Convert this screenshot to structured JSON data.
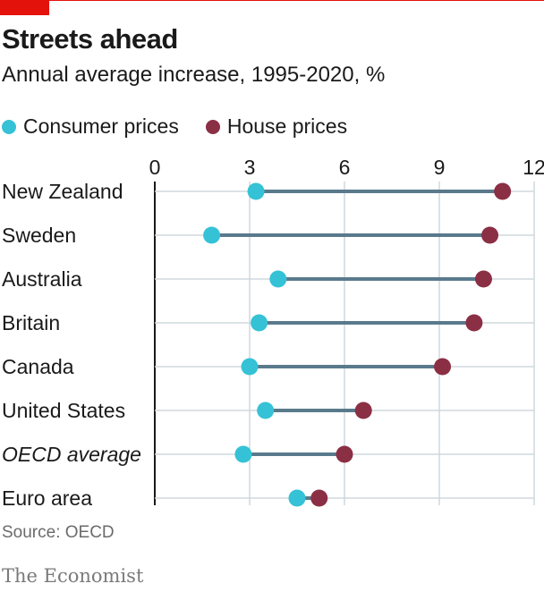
{
  "header": {
    "title": "Streets ahead",
    "subtitle": "Annual average increase, 1995-2020, %"
  },
  "legend": {
    "consumer": "Consumer prices",
    "house": "House prices"
  },
  "colors": {
    "consumer": "#35c2d6",
    "house": "#8b2f45",
    "connector": "#5a7a8c",
    "accent": "#e3120b"
  },
  "footer": {
    "source": "Source: OECD",
    "brand": "The Economist"
  },
  "chart_data": {
    "type": "dot-range",
    "xlim": [
      0,
      12
    ],
    "ticks": [
      "0",
      "3",
      "6",
      "9",
      "12"
    ],
    "tick_values": [
      0,
      3,
      6,
      9,
      12
    ],
    "grid": true,
    "categories": [
      "New Zealand",
      "Sweden",
      "Australia",
      "Britain",
      "Canada",
      "United States",
      "OECD average",
      "Euro area"
    ],
    "italic_categories": [
      "OECD average"
    ],
    "series": [
      {
        "name": "Consumer prices",
        "values": [
          3.2,
          1.8,
          3.9,
          3.3,
          3.0,
          3.5,
          2.8,
          4.5
        ]
      },
      {
        "name": "House prices",
        "values": [
          11.0,
          10.6,
          10.4,
          10.1,
          9.1,
          6.6,
          6.0,
          5.2
        ]
      }
    ]
  }
}
